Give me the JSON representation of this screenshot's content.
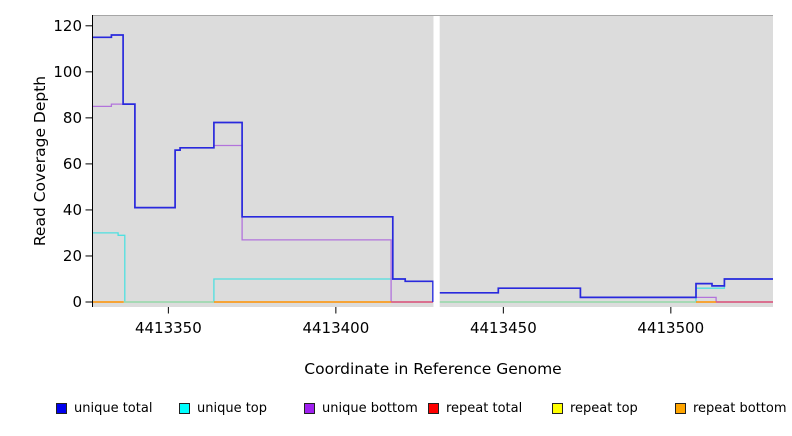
{
  "figure": {
    "background": "#FFFFFF",
    "plot_background": "#DCDCDC",
    "axis_color": "#000000",
    "plot_top_border_color": "#A6A6A6",
    "gap_color": "#FFFFFF"
  },
  "chart_data": {
    "type": "line",
    "subtype": "step",
    "title": "",
    "xlabel": "Coordinate in Reference Genome",
    "ylabel": "Read Coverage Depth",
    "xlim": [
      4413327.5,
      4413530.5
    ],
    "ylim": [
      0,
      120
    ],
    "xticks": [
      4413350,
      4413400,
      4413450,
      4413500
    ],
    "yticks": [
      0,
      20,
      40,
      60,
      80,
      100,
      120
    ],
    "grid": false,
    "legend_position": "bottom",
    "gap": {
      "x0": 4413429,
      "x1": 4413431
    },
    "series": [
      {
        "name": "unique total",
        "color": "#2929DD",
        "legend_color": "#0000EE",
        "width": 1.7,
        "segments": [
          {
            "points": [
              [
                4413327.5,
                115
              ],
              [
                4413333,
                116
              ],
              [
                4413336.5,
                86
              ],
              [
                4413340,
                41
              ],
              [
                4413352,
                66
              ],
              [
                4413353.5,
                67
              ],
              [
                4413363.6,
                78
              ],
              [
                4413372,
                37
              ],
              [
                4413417,
                10
              ],
              [
                4413420.7,
                9
              ],
              [
                4413429,
                0
              ]
            ],
            "end": 4413429
          },
          {
            "points": [
              [
                4413431,
                4
              ],
              [
                4413448.5,
                6
              ],
              [
                4413473,
                2
              ],
              [
                4413507.5,
                8
              ],
              [
                4413512.3,
                7
              ],
              [
                4413516,
                10
              ]
            ],
            "end": 4413530.5
          }
        ]
      },
      {
        "name": "unique top",
        "color": "#4FE0E0",
        "legend_color": "#00FFFF",
        "width": 1.3,
        "segments": [
          {
            "points": [
              [
                4413327.5,
                30
              ],
              [
                4413335,
                29
              ],
              [
                4413337,
                0
              ],
              [
                4413363.6,
                10
              ],
              [
                4413420.7,
                9
              ],
              [
                4413429,
                0
              ]
            ],
            "end": 4413429
          },
          {
            "points": [
              [
                4413431,
                0
              ],
              [
                4413507.5,
                6
              ],
              [
                4413516,
                10
              ]
            ],
            "end": 4413530.5
          }
        ]
      },
      {
        "name": "unique bottom",
        "color": "#B273DB",
        "legend_color": "#A020F0",
        "width": 1.3,
        "segments": [
          {
            "points": [
              [
                4413327.5,
                85
              ],
              [
                4413333,
                86
              ],
              [
                4413340,
                41
              ],
              [
                4413352,
                66
              ],
              [
                4413353.5,
                67
              ],
              [
                4413363.6,
                68
              ],
              [
                4413372,
                27
              ],
              [
                4413416.5,
                0
              ]
            ],
            "end": 4413429
          },
          {
            "points": [
              [
                4413431,
                4
              ],
              [
                4413448.5,
                6
              ],
              [
                4413473,
                2
              ],
              [
                4413513.5,
                0
              ]
            ],
            "end": 4413530.5
          }
        ]
      },
      {
        "name": "repeat total",
        "color": "#DD5577",
        "legend_color": "#FF0000",
        "width": 1.6,
        "segments": [
          {
            "points": [
              [
                4413416.5,
                0
              ]
            ],
            "end": 4413429
          },
          {
            "points": [
              [
                4413513.5,
                0
              ]
            ],
            "end": 4413530.5
          }
        ]
      },
      {
        "name": "repeat top",
        "color": "#EEEE00",
        "legend_color": "#FFFF00",
        "width": 1.3,
        "segments": []
      },
      {
        "name": "repeat bottom",
        "color": "#FF9100",
        "legend_color": "#FFA500",
        "width": 1.6,
        "segments": [
          {
            "points": [
              [
                4413327.5,
                0
              ]
            ],
            "end": 4413336.7
          },
          {
            "points": [
              [
                4413363.6,
                0
              ]
            ],
            "end": 4413416.5
          },
          {
            "points": [
              [
                4413507.5,
                0
              ]
            ],
            "end": 4413513.5
          }
        ]
      }
    ],
    "baseline_blend_segments": [
      {
        "x0": 4413336.7,
        "x1": 4413363.6,
        "color": "#A0D8A8"
      },
      {
        "x0": 4413430.8,
        "x1": 4413507.5,
        "color": "#A0D8A8"
      }
    ]
  },
  "legend": {
    "items": [
      {
        "label": "unique total",
        "color": "#0000EE"
      },
      {
        "label": "unique top",
        "color": "#00FFFF"
      },
      {
        "label": "unique bottom",
        "color": "#A020F0"
      },
      {
        "label": "repeat total",
        "color": "#FF0000"
      },
      {
        "label": "repeat top",
        "color": "#FFFF00"
      },
      {
        "label": "repeat bottom",
        "color": "#FFA500"
      }
    ]
  }
}
